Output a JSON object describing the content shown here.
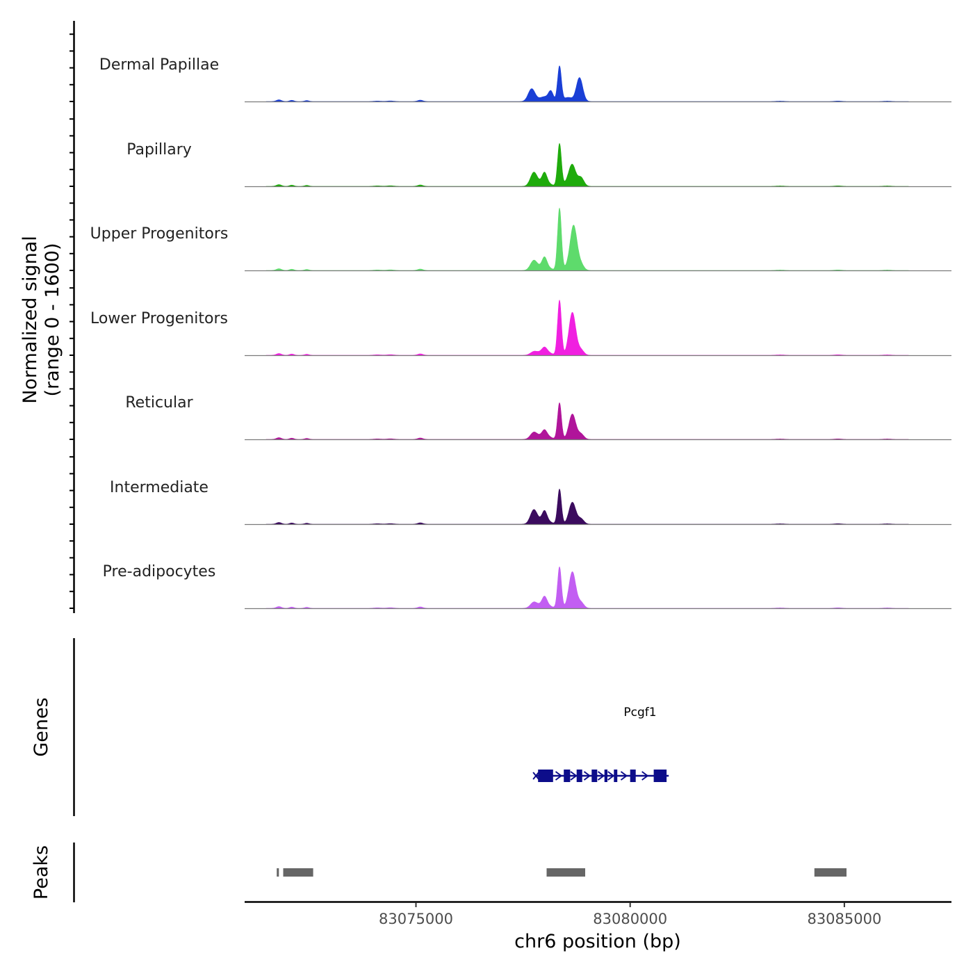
{
  "chart_data": {
    "type": "area",
    "title": "",
    "ylabel": "Normalized signal",
    "ylabel_range": "(range 0 - 1600)",
    "ylim": [
      0,
      1600
    ],
    "xlabel": "chr6 position (bp)",
    "xlim": [
      83071000,
      83087500
    ],
    "x_ticks": [
      {
        "value": 83075000,
        "label": "83075000"
      },
      {
        "value": 83080000,
        "label": "83080000"
      },
      {
        "value": 83085000,
        "label": "83085000"
      }
    ],
    "coverage_tracks": [
      {
        "name": "Dermal Papillae",
        "color": "#1a3fd6",
        "peaks": [
          [
            83078000,
            100,
            120
          ],
          [
            83078350,
            720,
            45
          ],
          [
            83078850,
            190,
            70
          ],
          [
            83078800,
            330,
            70
          ],
          [
            83077700,
            260,
            80
          ],
          [
            83078550,
            85,
            100
          ],
          [
            83078150,
            180,
            55
          ]
        ]
      },
      {
        "name": "Papillary",
        "color": "#1fab0c",
        "peaks": [
          [
            83078000,
            100,
            120
          ],
          [
            83078350,
            870,
            45
          ],
          [
            83078850,
            180,
            70
          ],
          [
            83078650,
            410,
            80
          ],
          [
            83077750,
            280,
            80
          ],
          [
            83078000,
            190,
            55
          ],
          [
            83078550,
            70,
            100
          ]
        ]
      },
      {
        "name": "Upper Progenitors",
        "color": "#5edb6c",
        "peaks": [
          [
            83078000,
            100,
            120
          ],
          [
            83078350,
            1270,
            45
          ],
          [
            83078850,
            120,
            70
          ],
          [
            83078680,
            900,
            80
          ],
          [
            83077750,
            200,
            80
          ],
          [
            83078000,
            180,
            55
          ],
          [
            83078550,
            60,
            100
          ]
        ]
      },
      {
        "name": "Lower Progenitors",
        "color": "#f020e0",
        "peaks": [
          [
            83078000,
            100,
            120
          ],
          [
            83078350,
            1130,
            45
          ],
          [
            83078850,
            110,
            70
          ],
          [
            83078650,
            880,
            80
          ],
          [
            83077750,
            70,
            80
          ],
          [
            83078000,
            70,
            55
          ]
        ]
      },
      {
        "name": "Reticular",
        "color": "#b0159a",
        "peaks": [
          [
            83078000,
            100,
            120
          ],
          [
            83078350,
            750,
            45
          ],
          [
            83078850,
            110,
            70
          ],
          [
            83078650,
            520,
            80
          ],
          [
            83077750,
            140,
            80
          ],
          [
            83078000,
            100,
            55
          ]
        ]
      },
      {
        "name": "Intermediate",
        "color": "#3b0b5e",
        "peaks": [
          [
            83078000,
            100,
            120
          ],
          [
            83078350,
            720,
            45
          ],
          [
            83078850,
            110,
            70
          ],
          [
            83078650,
            450,
            80
          ],
          [
            83077750,
            290,
            80
          ],
          [
            83078000,
            180,
            55
          ]
        ]
      },
      {
        "name": "Pre-adipocytes",
        "color": "#c25ef2",
        "peaks": [
          [
            83078000,
            100,
            120
          ],
          [
            83078350,
            850,
            45
          ],
          [
            83078850,
            120,
            70
          ],
          [
            83078650,
            750,
            80
          ],
          [
            83077750,
            120,
            80
          ],
          [
            83078000,
            150,
            55
          ]
        ]
      }
    ],
    "genes_track": {
      "label": "Genes",
      "gene_name": "Pcgf1",
      "color": "#0d0d8a",
      "start": 83077800,
      "end": 83080900,
      "strand": "+",
      "exons": [
        [
          83077850,
          83078200
        ],
        [
          83078450,
          83078600
        ],
        [
          83078750,
          83078880
        ],
        [
          83079100,
          83079230
        ],
        [
          83079400,
          83079470
        ],
        [
          83079620,
          83079700
        ],
        [
          83080000,
          83080130
        ],
        [
          83080550,
          83080850
        ]
      ]
    },
    "peaks_track": {
      "label": "Peaks",
      "color": "#666666",
      "regions": [
        [
          83071750,
          83071800
        ],
        [
          83071900,
          83072600
        ],
        [
          83078050,
          83078950
        ],
        [
          83084300,
          83085050
        ]
      ]
    }
  }
}
